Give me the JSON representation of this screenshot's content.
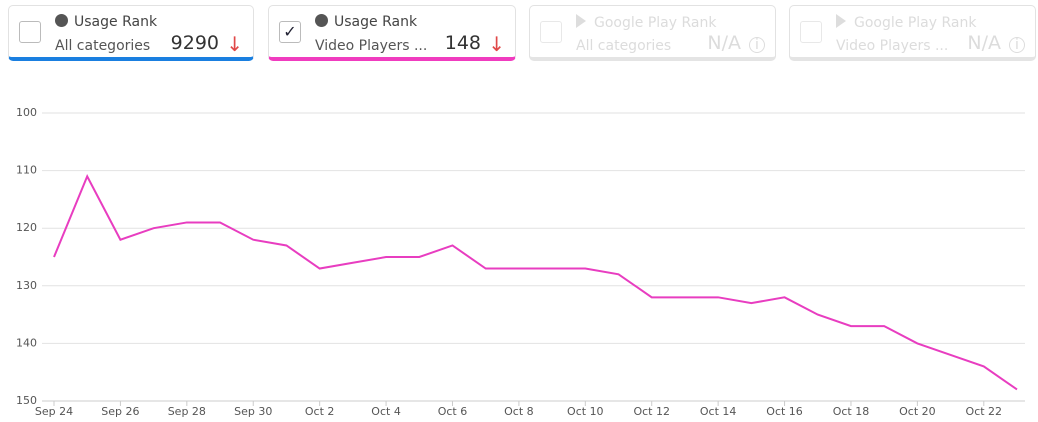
{
  "cards": [
    {
      "title": "Usage Rank",
      "subtitle": "All categories",
      "value": 9290,
      "checked": false,
      "color": "#1a7fe0"
    },
    {
      "title": "Usage Rank",
      "subtitle": "Video Players ...",
      "value": 148,
      "checked": true,
      "color": "#f03cbf"
    },
    {
      "title": "Google Play Rank",
      "subtitle": "All categories",
      "value": "N/A",
      "checked": false,
      "color": "#e4e4e4"
    },
    {
      "title": "Google Play Rank",
      "subtitle": "Video Players ...",
      "value": "N/A",
      "checked": false,
      "color": "#e4e4e4"
    }
  ],
  "chart_data": {
    "type": "line",
    "categories": [
      "Sep 24",
      null,
      "Sep 26",
      null,
      "Sep 28",
      null,
      "Sep 30",
      null,
      "Oct 2",
      null,
      "Oct 4",
      null,
      "Oct 6",
      null,
      "Oct 8",
      null,
      "Oct 10",
      null,
      "Oct 12",
      null,
      "Oct 14",
      null,
      "Oct 16",
      null,
      "Oct 18",
      null,
      "Oct 20",
      null,
      "Oct 22",
      null
    ],
    "series": [
      {
        "color": "#e83dc0",
        "values": [
          125,
          111,
          122,
          120,
          119,
          119,
          122,
          123,
          127,
          126,
          125,
          125,
          123,
          127,
          127,
          127,
          127,
          128,
          132,
          132,
          132,
          133,
          132,
          135,
          137,
          137,
          140,
          142,
          144,
          148
        ]
      }
    ],
    "ylim": [
      100,
      150
    ],
    "yticks": [
      100,
      110,
      120,
      130,
      140,
      150
    ],
    "y_reversed": true,
    "grid": true
  }
}
